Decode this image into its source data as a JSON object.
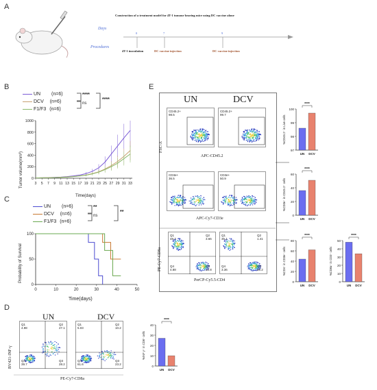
{
  "panels": {
    "A": "A",
    "B": "B",
    "C": "C",
    "D": "D",
    "E": "E"
  },
  "panelA": {
    "title": "Construction of a treatment model for 4T-1 tumour bearing mice using DC vaccine alone",
    "days_label": "Days",
    "procedures_label": "Procedures",
    "day_ticks": [
      "0",
      "7",
      "9"
    ],
    "events": [
      "4T-1 inoculation",
      "DC vaccine injection",
      "DC vaccine injection"
    ]
  },
  "panelB": {
    "legend": [
      {
        "name": "UN",
        "n": "(n=6)",
        "color": "#7b5cd6"
      },
      {
        "name": "DCV",
        "n": "(n=6)",
        "color": "#c8a070"
      },
      {
        "name": "F1/F3",
        "n": "(n=6)",
        "color": "#8ab86a"
      }
    ],
    "sig": [
      "****",
      "ns",
      "****"
    ],
    "ylabel": "Tumor volume(mm³)",
    "xlabel": "Time(days)",
    "chart_data": {
      "type": "line",
      "x": [
        3,
        5,
        7,
        9,
        11,
        13,
        15,
        17,
        19,
        21,
        23,
        25,
        27,
        29,
        31,
        33
      ],
      "ylim": [
        0,
        1000
      ],
      "yticks": [
        0,
        200,
        400,
        600,
        800,
        1000
      ],
      "series": [
        {
          "name": "UN",
          "values": [
            5,
            8,
            10,
            15,
            20,
            28,
            40,
            55,
            80,
            120,
            180,
            280,
            420,
            560,
            700,
            830
          ]
        },
        {
          "name": "DCV",
          "values": [
            5,
            7,
            9,
            12,
            16,
            22,
            30,
            40,
            55,
            80,
            110,
            160,
            220,
            290,
            380,
            480
          ]
        },
        {
          "name": "F1/F3",
          "values": [
            5,
            7,
            8,
            11,
            15,
            20,
            28,
            38,
            52,
            75,
            105,
            150,
            200,
            260,
            340,
            420
          ]
        }
      ]
    }
  },
  "panelC": {
    "legend": [
      {
        "name": "UN",
        "n": "(n=6)",
        "color": "#4a4ad0"
      },
      {
        "name": "DCV",
        "n": "(n=6)",
        "color": "#c87830"
      },
      {
        "name": "F1/F3",
        "n": "(n=6)",
        "color": "#6aa84f"
      }
    ],
    "sig": [
      "**",
      "ns",
      "**"
    ],
    "ylabel": "Probability of Survival",
    "xlabel": "Time(days)",
    "chart_data": {
      "type": "line",
      "xlim": [
        0,
        50
      ],
      "ylim": [
        0,
        100
      ],
      "xticks": [
        0,
        10,
        20,
        30,
        40,
        50
      ],
      "yticks": [
        0,
        50,
        100
      ],
      "series": [
        {
          "name": "UN",
          "x": [
            0,
            26,
            26,
            29,
            29,
            31,
            31,
            33,
            33
          ],
          "values": [
            100,
            100,
            83,
            83,
            50,
            50,
            17,
            17,
            0
          ]
        },
        {
          "name": "DCV",
          "x": [
            0,
            33,
            33,
            37,
            37,
            42
          ],
          "values": [
            100,
            100,
            83,
            83,
            50,
            50
          ]
        },
        {
          "name": "F1/F3",
          "x": [
            0,
            34,
            34,
            38,
            38,
            42
          ],
          "values": [
            100,
            100,
            67,
            67,
            17,
            17
          ]
        }
      ]
    }
  },
  "panelD": {
    "groups": [
      "UN",
      "DCV"
    ],
    "yaxis": "BV421-INF-γ",
    "xaxis": "PE-Cy7-CD8a",
    "un_quads": {
      "q1": "Q1",
      "q1v": "4.98",
      "q2": "Q2",
      "q2v": "27.1",
      "q3": "Q3",
      "q3v": "28.2",
      "q4": "Q4",
      "q4v": "39.7"
    },
    "dcv_quads": {
      "q1": "Q1",
      "q1v": "5.03",
      "q2": "Q2",
      "q2v": "10.2",
      "q3": "Q3",
      "q3v": "23.2",
      "q4": "Q4",
      "q4v": "61.6"
    },
    "bar": {
      "ylabel": "%INF γ⁺ in CD8⁺ cells",
      "sig": "****",
      "chart_data": {
        "type": "bar",
        "categories": [
          "UN",
          "DCV"
        ],
        "values": [
          27,
          10
        ],
        "ylim": [
          0,
          40
        ],
        "yticks": [
          "0",
          "10",
          "20",
          "30",
          "40"
        ]
      },
      "colors": [
        "#6b6ef0",
        "#e8826e"
      ]
    }
  },
  "panelE": {
    "groups": [
      "UN",
      "DCV"
    ],
    "row1": {
      "gate_un": "CD45.2+",
      "val_un": "98.5",
      "gate_dcv": "CD45.2+",
      "val_dcv": "99.7",
      "yaxis": "FSC-A",
      "xaxis": "APC-CD45.2"
    },
    "row2": {
      "gate_un": "CD3e+",
      "val_un": "36.5",
      "gate_dcv": "CD3e+",
      "val_dcv": "50.9",
      "xaxis": "APC-Cy7-CD3e"
    },
    "row3": {
      "yaxis": "PE-Cy7-CD8a",
      "xaxis": "PerCP-Cy5.5-CD4",
      "un": {
        "q1": "Q1",
        "q1v": "48.7",
        "q2": "Q2",
        "q2v": "3.66",
        "q3": "Q3",
        "q3v": "42.8",
        "q4": "Q4",
        "q4v": "4.88"
      },
      "dcv": {
        "q1": "Q1",
        "q1v": "35.1",
        "q2": "Q2",
        "q2v": "1.41",
        "q3": "Q3",
        "q3v": "60.2",
        "q4": "Q4",
        "q4v": "3.36"
      }
    },
    "bars": [
      {
        "ylabel": "%CD45.2⁺ in Live cells",
        "sig": "****",
        "chart_data": {
          "type": "bar",
          "categories": [
            "UN",
            "DCV"
          ],
          "values": [
            98.6,
            99.7
          ],
          "ylim": [
            97,
            100
          ],
          "yticks": [
            "97",
            "98",
            "99",
            "100"
          ]
        }
      },
      {
        "ylabel": "%CD3e⁺ in CD45.2⁺ cells",
        "sig": "****",
        "chart_data": {
          "type": "bar",
          "categories": [
            "UN",
            "DCV"
          ],
          "values": [
            36,
            51
          ],
          "ylim": [
            0,
            60
          ],
          "yticks": [
            "0",
            "20",
            "40",
            "60"
          ]
        }
      },
      {
        "ylabel": "%CD4⁺ in CD3e⁺ cells",
        "sig": "****",
        "chart_data": {
          "type": "bar",
          "categories": [
            "UN",
            "DCV"
          ],
          "values": [
            44,
            62
          ],
          "ylim": [
            0,
            80
          ],
          "yticks": [
            "0",
            "20",
            "40",
            "60",
            "80"
          ]
        }
      },
      {
        "ylabel": "%CD8a⁺ in CD3⁺ cells",
        "sig": "****",
        "chart_data": {
          "type": "bar",
          "categories": [
            "UN",
            "DCV"
          ],
          "values": [
            48,
            34
          ],
          "ylim": [
            0,
            50
          ],
          "yticks": [
            "0",
            "10",
            "20",
            "30",
            "40",
            "50"
          ]
        }
      }
    ],
    "colors": [
      "#6b6ef0",
      "#e8826e"
    ]
  }
}
